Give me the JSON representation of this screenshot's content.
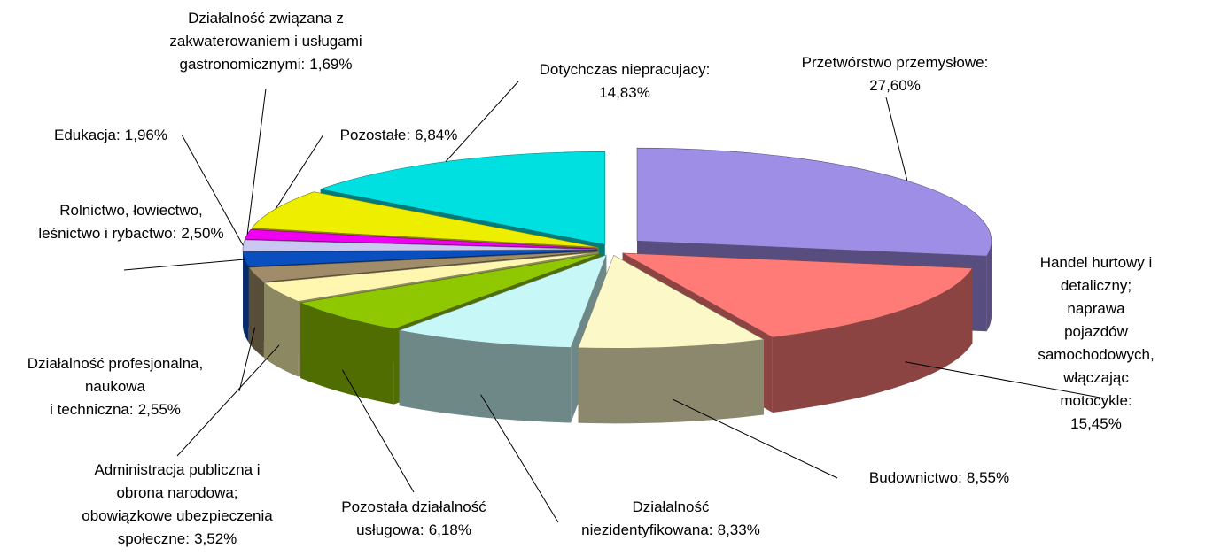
{
  "chart_data": {
    "type": "pie",
    "categories": [
      "Przetwórstwo przemysłowe:",
      "Handel hurtowy i detaliczny;\nnaprawa pojazdów\nsamochodowych,\nwłączając motocykle:",
      "Budownictwo:",
      "Działalność\nniezidentyfikowana:",
      "Pozostała działalność\nusługowa:",
      "Administracja publiczna i\nobrona narodowa;\nobowiązkowe ubezpieczenia\nspołeczne:",
      "Działalność profesjonalna,\nnaukowa\ni techniczna:",
      "Rolnictwo, łowiectwo,\nleśnictwo i rybactwo:",
      "Edukacja:",
      "Działalność związana z\nzakwaterowaniem i usługami\ngastronomicznymi:",
      "Pozostałe:",
      "Dotychczas niepracujacy:"
    ],
    "values": [
      27.6,
      15.45,
      8.55,
      8.33,
      6.18,
      3.52,
      2.55,
      2.5,
      1.96,
      1.69,
      6.84,
      14.83
    ],
    "value_labels": [
      "27,60%",
      "15,45%",
      "8,55%",
      "8,33%",
      "6,18%",
      "3,52%",
      "2,55%",
      "2,50%",
      "1,96%",
      "1,69%",
      "6,84%",
      "14,83%"
    ],
    "colors": [
      "#9f8ee6",
      "#ff7b78",
      "#fcf8c8",
      "#c8f7f7",
      "#8fc700",
      "#fff7b0",
      "#a08c68",
      "#0a4fc0",
      "#c8c8f0",
      "#8a1ab0",
      "#f000f0",
      "#eeee00",
      "#00e0e0"
    ]
  }
}
